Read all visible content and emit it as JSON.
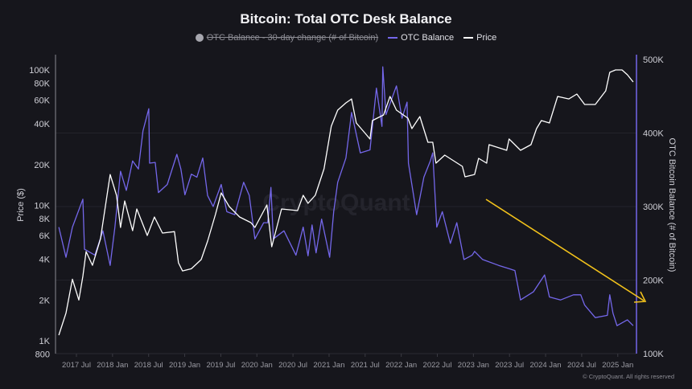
{
  "chart_data": {
    "type": "line",
    "title": "Bitcoin: Total OTC Desk Balance",
    "legend": {
      "position": "top",
      "items": [
        {
          "name": "OTC Balance - 30-day change (# of Bitcoin)",
          "marker": "circle",
          "color": "#a6a6ae",
          "hidden": true
        },
        {
          "name": "OTC Balance",
          "marker": "line",
          "color": "#7467ea"
        },
        {
          "name": "Price",
          "marker": "line",
          "color": "#ffffff"
        }
      ]
    },
    "x_ticks": [
      "2017 Jul",
      "2018 Jan",
      "2018 Jul",
      "2019 Jan",
      "2019 Jul",
      "2020 Jan",
      "2020 Jul",
      "2021 Jan",
      "2021 Jul",
      "2022 Jan",
      "2022 Jul",
      "2023 Jan",
      "2023 Jul",
      "2024 Jan",
      "2024 Jul",
      "2025 Jan"
    ],
    "xlim": [
      "2017-04-01",
      "2025-04-01"
    ],
    "y_left": {
      "label": "Price ($)",
      "scale": "log",
      "range": [
        800,
        120000
      ],
      "ticks": [
        {
          "v": 100000,
          "t": "100K"
        },
        {
          "v": 80000,
          "t": "80K"
        },
        {
          "v": 60000,
          "t": "60K"
        },
        {
          "v": 40000,
          "t": "40K"
        },
        {
          "v": 20000,
          "t": "20K"
        },
        {
          "v": 10000,
          "t": "10K"
        },
        {
          "v": 8000,
          "t": "8K"
        },
        {
          "v": 6000,
          "t": "6K"
        },
        {
          "v": 4000,
          "t": "4K"
        },
        {
          "v": 2000,
          "t": "2K"
        },
        {
          "v": 1000,
          "t": "1K"
        },
        {
          "v": 800,
          "t": "800"
        }
      ]
    },
    "y_right": {
      "label": "OTC Bitcoin Balance (# of Bitcoin)",
      "scale": "linear",
      "range": [
        100000,
        500000
      ],
      "ticks": [
        {
          "v": 500000,
          "t": "500K"
        },
        {
          "v": 400000,
          "t": "400K"
        },
        {
          "v": 300000,
          "t": "300K"
        },
        {
          "v": 200000,
          "t": "200K"
        },
        {
          "v": 100000,
          "t": "100K"
        }
      ]
    },
    "grid": true,
    "series": [
      {
        "name": "OTC Balance",
        "axis": "right",
        "color": "#7467ea",
        "points": [
          [
            "2017-04-03",
            272000
          ],
          [
            "2017-05-09",
            231000
          ],
          [
            "2017-06-11",
            272000
          ],
          [
            "2017-08-03",
            310000
          ],
          [
            "2017-08-11",
            242000
          ],
          [
            "2017-10-03",
            234000
          ],
          [
            "2017-11-13",
            267000
          ],
          [
            "2017-12-19",
            220000
          ],
          [
            "2018-01-13",
            272000
          ],
          [
            "2018-02-11",
            348000
          ],
          [
            "2018-03-10",
            322000
          ],
          [
            "2018-04-11",
            362000
          ],
          [
            "2018-05-10",
            351000
          ],
          [
            "2018-06-03",
            403000
          ],
          [
            "2018-07-02",
            433000
          ],
          [
            "2018-07-06",
            359000
          ],
          [
            "2018-08-04",
            360000
          ],
          [
            "2018-08-20",
            319000
          ],
          [
            "2018-10-04",
            330000
          ],
          [
            "2018-11-22",
            371000
          ],
          [
            "2018-12-12",
            351000
          ],
          [
            "2019-01-02",
            316000
          ],
          [
            "2019-02-04",
            344000
          ],
          [
            "2019-03-02",
            340000
          ],
          [
            "2019-04-01",
            366000
          ],
          [
            "2019-04-25",
            315000
          ],
          [
            "2019-05-23",
            300000
          ],
          [
            "2019-07-03",
            330000
          ],
          [
            "2019-08-01",
            293000
          ],
          [
            "2019-09-11",
            289000
          ],
          [
            "2019-10-25",
            333000
          ],
          [
            "2019-11-23",
            315000
          ],
          [
            "2019-12-21",
            256000
          ],
          [
            "2020-02-05",
            278000
          ],
          [
            "2020-02-25",
            278000
          ],
          [
            "2020-03-11",
            326000
          ],
          [
            "2020-03-23",
            256000
          ],
          [
            "2020-05-16",
            267000
          ],
          [
            "2020-07-16",
            234000
          ],
          [
            "2020-08-22",
            272000
          ],
          [
            "2020-09-16",
            233000
          ],
          [
            "2020-10-06",
            275000
          ],
          [
            "2020-10-26",
            237000
          ],
          [
            "2020-11-24",
            283000
          ],
          [
            "2021-01-04",
            231000
          ],
          [
            "2021-01-24",
            293000
          ],
          [
            "2021-02-14",
            333000
          ],
          [
            "2021-03-25",
            366000
          ],
          [
            "2021-04-23",
            428000
          ],
          [
            "2021-06-07",
            373000
          ],
          [
            "2021-07-25",
            377000
          ],
          [
            "2021-08-27",
            461000
          ],
          [
            "2021-09-25",
            409000
          ],
          [
            "2021-09-29",
            490000
          ],
          [
            "2021-10-15",
            425000
          ],
          [
            "2021-12-07",
            464000
          ],
          [
            "2022-01-05",
            420000
          ],
          [
            "2022-01-30",
            442000
          ],
          [
            "2022-02-07",
            359000
          ],
          [
            "2022-03-18",
            289000
          ],
          [
            "2022-04-24",
            340000
          ],
          [
            "2022-05-26",
            362000
          ],
          [
            "2022-06-08",
            373000
          ],
          [
            "2022-06-28",
            272000
          ],
          [
            "2022-07-26",
            293000
          ],
          [
            "2022-09-06",
            250000
          ],
          [
            "2022-10-08",
            278000
          ],
          [
            "2022-11-14",
            228000
          ],
          [
            "2022-12-25",
            234000
          ],
          [
            "2023-01-07",
            239000
          ],
          [
            "2023-02-17",
            228000
          ],
          [
            "2023-05-07",
            220000
          ],
          [
            "2023-07-28",
            213000
          ],
          [
            "2023-08-26",
            173000
          ],
          [
            "2023-10-30",
            184000
          ],
          [
            "2023-12-26",
            207000
          ],
          [
            "2024-01-20",
            177000
          ],
          [
            "2024-03-16",
            173000
          ],
          [
            "2024-05-20",
            180000
          ],
          [
            "2024-06-26",
            180000
          ],
          [
            "2024-07-16",
            166000
          ],
          [
            "2024-09-09",
            149000
          ],
          [
            "2024-11-09",
            152000
          ],
          [
            "2024-11-21",
            180000
          ],
          [
            "2024-12-07",
            155000
          ],
          [
            "2024-12-27",
            138000
          ],
          [
            "2025-02-19",
            146000
          ],
          [
            "2025-03-18",
            138000
          ]
        ]
      },
      {
        "name": "Price",
        "axis": "left",
        "color": "#ffffff",
        "points": [
          [
            "2017-04-03",
            1100
          ],
          [
            "2017-05-09",
            1600
          ],
          [
            "2017-06-11",
            2850
          ],
          [
            "2017-07-13",
            2000
          ],
          [
            "2017-08-03",
            3000
          ],
          [
            "2017-08-19",
            4560
          ],
          [
            "2017-09-21",
            3610
          ],
          [
            "2017-11-01",
            5675
          ],
          [
            "2017-12-19",
            16900
          ],
          [
            "2018-01-21",
            11860
          ],
          [
            "2018-02-11",
            6870
          ],
          [
            "2018-03-02",
            10780
          ],
          [
            "2018-04-11",
            6500
          ],
          [
            "2018-05-02",
            9400
          ],
          [
            "2018-06-24",
            5990
          ],
          [
            "2018-07-30",
            8200
          ],
          [
            "2018-09-10",
            6240
          ],
          [
            "2018-11-10",
            6400
          ],
          [
            "2018-11-30",
            3765
          ],
          [
            "2018-12-20",
            3280
          ],
          [
            "2019-02-04",
            3400
          ],
          [
            "2019-03-23",
            3975
          ],
          [
            "2019-04-25",
            5445
          ],
          [
            "2019-06-04",
            8550
          ],
          [
            "2019-07-03",
            12360
          ],
          [
            "2019-08-13",
            9800
          ],
          [
            "2019-10-05",
            8200
          ],
          [
            "2019-12-01",
            7450
          ],
          [
            "2019-12-21",
            6870
          ],
          [
            "2020-02-21",
            10070
          ],
          [
            "2020-03-15",
            4950
          ],
          [
            "2020-05-04",
            9400
          ],
          [
            "2020-07-24",
            9150
          ],
          [
            "2020-08-22",
            11860
          ],
          [
            "2020-09-16",
            10350
          ],
          [
            "2020-10-22",
            11860
          ],
          [
            "2020-12-06",
            18620
          ],
          [
            "2021-01-12",
            38430
          ],
          [
            "2021-02-14",
            50500
          ],
          [
            "2021-03-25",
            57100
          ],
          [
            "2021-04-23",
            61100
          ],
          [
            "2021-05-17",
            40600
          ],
          [
            "2021-07-05",
            33500
          ],
          [
            "2021-07-25",
            30900
          ],
          [
            "2021-08-07",
            42300
          ],
          [
            "2021-10-03",
            46550
          ],
          [
            "2021-11-05",
            63700
          ],
          [
            "2021-12-07",
            50500
          ],
          [
            "2022-02-04",
            44050
          ],
          [
            "2022-02-24",
            36900
          ],
          [
            "2022-04-04",
            45250
          ],
          [
            "2022-05-14",
            29240
          ],
          [
            "2022-06-08",
            29240
          ],
          [
            "2022-06-24",
            20500
          ],
          [
            "2022-08-08",
            23500
          ],
          [
            "2022-11-06",
            19400
          ],
          [
            "2022-11-19",
            16240
          ],
          [
            "2023-01-07",
            16900
          ],
          [
            "2023-01-27",
            22240
          ],
          [
            "2023-03-07",
            20500
          ],
          [
            "2023-03-19",
            28050
          ],
          [
            "2023-06-17",
            25500
          ],
          [
            "2023-06-29",
            30900
          ],
          [
            "2023-08-26",
            25500
          ],
          [
            "2023-10-18",
            28050
          ],
          [
            "2023-11-16",
            36900
          ],
          [
            "2023-12-10",
            42300
          ],
          [
            "2024-01-20",
            40600
          ],
          [
            "2024-03-01",
            63700
          ],
          [
            "2024-04-27",
            61100
          ],
          [
            "2024-06-07",
            66400
          ],
          [
            "2024-07-16",
            55600
          ],
          [
            "2024-09-09",
            55600
          ],
          [
            "2024-11-01",
            70100
          ],
          [
            "2024-11-21",
            96000
          ],
          [
            "2024-12-20",
            100000
          ],
          [
            "2025-01-22",
            100000
          ],
          [
            "2025-02-19",
            92100
          ],
          [
            "2025-03-18",
            81500
          ]
        ]
      }
    ],
    "annotations": [
      {
        "type": "arrow",
        "color": "#f2c21b",
        "direction": "down-right"
      }
    ],
    "watermark": "CryptoQuant"
  },
  "footer": {
    "copyright": "© CryptoQuant. All rights reserved"
  }
}
